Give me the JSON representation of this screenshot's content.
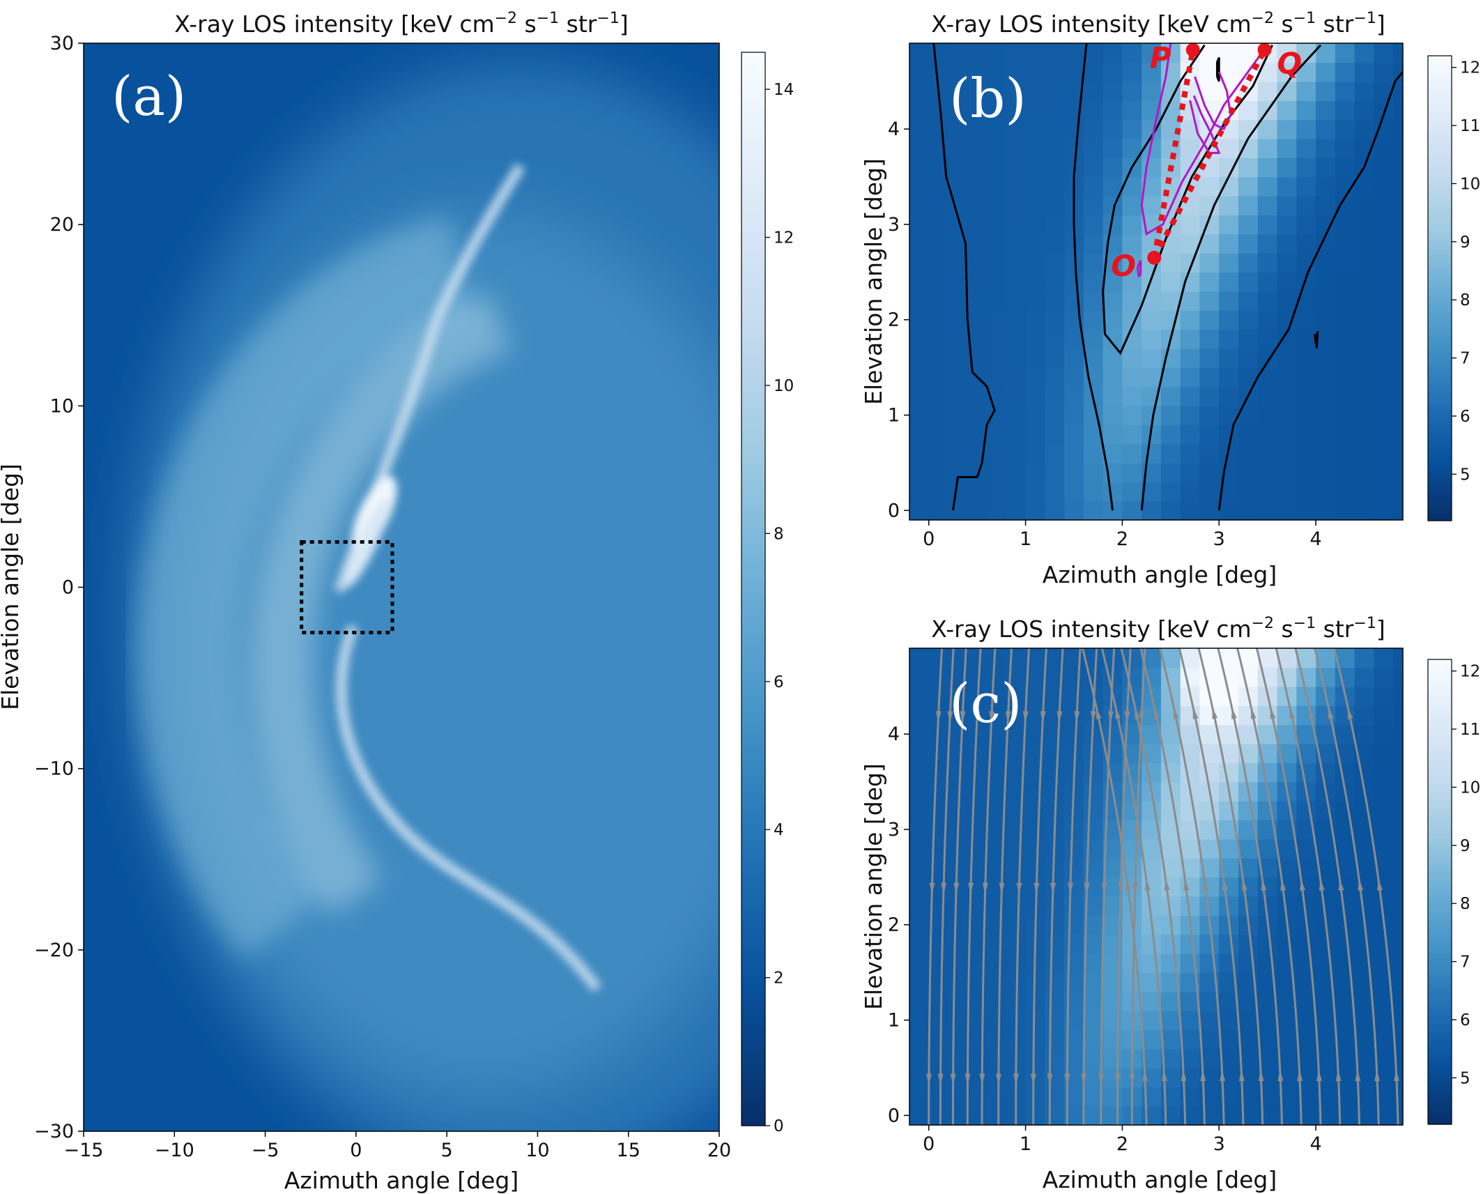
{
  "colormap": {
    "name": "Blues_r",
    "stops": [
      "#08306b",
      "#08519c",
      "#2171b5",
      "#4292c6",
      "#6baed6",
      "#9ecae1",
      "#c6dbef",
      "#deebf7",
      "#f7fbff"
    ]
  },
  "chart_data": [
    {
      "panel": "(a)",
      "type": "heatmap",
      "title": "X-ray LOS intensity [keV cm$^{-2}$ s$^{-1}$ str$^{-1}$]",
      "title_parts": {
        "lead": "X-ray LOS intensity [keV cm",
        "e1": "−2",
        "mid1": " s",
        "e2": "−1",
        "mid2": " str",
        "e3": "−1",
        "tail": "]"
      },
      "xlabel": "Azimuth angle [deg]",
      "ylabel": "Elevation angle [deg]",
      "xlim": [
        -15,
        20
      ],
      "ylim": [
        -30,
        30
      ],
      "xticks": [
        -15,
        -10,
        -5,
        0,
        5,
        10,
        15,
        20
      ],
      "xtick_labels": [
        "−15",
        "−10",
        "−5",
        "0",
        "5",
        "10",
        "15",
        "20"
      ],
      "yticks": [
        -30,
        -20,
        -10,
        0,
        10,
        20,
        30
      ],
      "ytick_labels": [
        "−30",
        "−20",
        "−10",
        "0",
        "10",
        "20",
        "30"
      ],
      "colorbar": {
        "min": 0,
        "max": 14.5,
        "ticks": [
          0,
          2,
          4,
          6,
          8,
          10,
          12,
          14
        ],
        "tick_labels": [
          "0",
          "2",
          "4",
          "6",
          "8",
          "10",
          "12",
          "14"
        ]
      },
      "features": {
        "arc_center": [
          -1,
          0
        ],
        "arc_radius_deg": 18,
        "bright_filament_peak": {
          "azimuth": 1,
          "elevation": 4,
          "intensity": 14.5
        }
      },
      "zoom_box": {
        "x": [
          -3,
          2
        ],
        "y": [
          -2.5,
          2.5
        ],
        "style": "dotted",
        "color": "#000000"
      }
    },
    {
      "panel": "(b)",
      "type": "heatmap",
      "title_parts": {
        "lead": "X-ray LOS intensity [keV cm",
        "e1": "−2",
        "mid1": " s",
        "e2": "−1",
        "mid2": " str",
        "e3": "−1",
        "tail": "]"
      },
      "xlabel": "Azimuth angle [deg]",
      "ylabel": "Elevation angle [deg]",
      "xlim": [
        -0.2,
        4.9
      ],
      "ylim": [
        -0.1,
        4.9
      ],
      "xticks": [
        0,
        1,
        2,
        3,
        4
      ],
      "xtick_labels": [
        "0",
        "1",
        "2",
        "3",
        "4"
      ],
      "yticks": [
        0,
        1,
        2,
        3,
        4
      ],
      "ytick_labels": [
        "0",
        "1",
        "2",
        "3",
        "4"
      ],
      "colorbar": {
        "min": 4.2,
        "max": 12.2,
        "ticks": [
          5,
          6,
          7,
          8,
          9,
          10,
          11,
          12
        ],
        "tick_labels": [
          "5",
          "6",
          "7",
          "8",
          "9",
          "10",
          "11",
          "12"
        ]
      },
      "points": [
        {
          "label": "O",
          "azimuth": 2.33,
          "elevation": 2.65
        },
        {
          "label": "P",
          "azimuth": 2.73,
          "elevation": 4.83
        },
        {
          "label": "Q",
          "azimuth": 3.47,
          "elevation": 4.83
        }
      ],
      "dotted_lines": [
        [
          "O",
          "P"
        ],
        [
          "O",
          "Q"
        ]
      ],
      "contour_colors": {
        "outer": "#000000",
        "inner": "#b218c4"
      },
      "contours": [
        {
          "color": "outer",
          "points": [
            [
              0.25,
              0.0
            ],
            [
              0.3,
              0.35
            ],
            [
              0.5,
              0.35
            ],
            [
              0.55,
              0.5
            ],
            [
              0.6,
              0.9
            ],
            [
              0.68,
              1.05
            ],
            [
              0.6,
              1.3
            ],
            [
              0.45,
              1.45
            ],
            [
              0.4,
              2.0
            ],
            [
              0.38,
              2.8
            ],
            [
              0.18,
              3.5
            ],
            [
              0.12,
              4.2
            ],
            [
              0.05,
              4.9
            ]
          ]
        },
        {
          "color": "outer",
          "points": [
            [
              1.9,
              0.0
            ],
            [
              1.85,
              0.4
            ],
            [
              1.76,
              0.9
            ],
            [
              1.65,
              1.4
            ],
            [
              1.56,
              2.0
            ],
            [
              1.52,
              2.5
            ],
            [
              1.5,
              3.0
            ],
            [
              1.5,
              3.5
            ],
            [
              1.55,
              4.1
            ],
            [
              1.6,
              4.6
            ],
            [
              1.63,
              4.9
            ]
          ]
        },
        {
          "color": "outer",
          "points": [
            [
              2.85,
              4.88
            ],
            [
              2.6,
              4.5
            ],
            [
              2.35,
              4.0
            ],
            [
              2.1,
              3.6
            ],
            [
              1.92,
              3.2
            ],
            [
              1.85,
              2.8
            ],
            [
              1.8,
              2.3
            ],
            [
              1.82,
              1.85
            ],
            [
              1.98,
              1.65
            ],
            [
              2.2,
              2.15
            ],
            [
              2.45,
              2.85
            ],
            [
              2.72,
              3.5
            ],
            [
              3.05,
              4.05
            ],
            [
              3.35,
              4.45
            ],
            [
              3.55,
              4.88
            ]
          ]
        },
        {
          "color": "outer",
          "points": [
            [
              2.2,
              0.0
            ],
            [
              2.25,
              0.5
            ],
            [
              2.32,
              1.0
            ],
            [
              2.45,
              1.6
            ],
            [
              2.65,
              2.4
            ],
            [
              2.95,
              3.2
            ],
            [
              3.3,
              3.9
            ],
            [
              3.75,
              4.55
            ],
            [
              4.05,
              4.88
            ]
          ]
        },
        {
          "color": "outer",
          "points": [
            [
              3.0,
              0.0
            ],
            [
              3.05,
              0.4
            ],
            [
              3.15,
              0.9
            ],
            [
              3.4,
              1.4
            ],
            [
              3.72,
              1.9
            ],
            [
              3.92,
              2.5
            ],
            [
              4.25,
              3.2
            ],
            [
              4.5,
              3.6
            ],
            [
              4.65,
              4.0
            ],
            [
              4.82,
              4.5
            ],
            [
              4.9,
              4.6
            ]
          ]
        },
        {
          "color": "outer",
          "points": [
            [
              4.0,
              1.75
            ],
            [
              4.02,
              1.88
            ],
            [
              4.01,
              1.7
            ],
            [
              3.99,
              1.85
            ],
            [
              4.0,
              1.75
            ]
          ]
        },
        {
          "color": "outer",
          "points": [
            [
              2.98,
              4.55
            ],
            [
              2.98,
              4.7
            ],
            [
              3.0,
              4.75
            ],
            [
              3.0,
              4.5
            ],
            [
              2.98,
              4.55
            ]
          ]
        },
        {
          "color": "inner",
          "points": [
            [
              2.5,
              4.9
            ],
            [
              2.45,
              4.55
            ],
            [
              2.35,
              4.1
            ],
            [
              2.25,
              3.6
            ],
            [
              2.2,
              3.2
            ],
            [
              2.25,
              2.9
            ],
            [
              2.42,
              3.0
            ],
            [
              2.62,
              3.45
            ],
            [
              2.85,
              3.85
            ],
            [
              3.05,
              4.25
            ],
            [
              3.3,
              4.6
            ],
            [
              3.5,
              4.88
            ]
          ]
        },
        {
          "color": "inner",
          "points": [
            [
              2.75,
              4.55
            ],
            [
              2.85,
              4.25
            ],
            [
              2.95,
              4.05
            ],
            [
              3.05,
              4.0
            ],
            [
              3.12,
              4.15
            ],
            [
              3.08,
              4.4
            ],
            [
              3.0,
              4.6
            ]
          ]
        },
        {
          "color": "inner",
          "points": [
            [
              2.7,
              4.3
            ],
            [
              2.78,
              3.95
            ],
            [
              2.9,
              3.75
            ],
            [
              3.0,
              3.75
            ],
            [
              2.92,
              3.95
            ],
            [
              2.82,
              4.15
            ],
            [
              2.74,
              4.35
            ]
          ]
        },
        {
          "color": "inner",
          "points": [
            [
              2.17,
              2.45
            ],
            [
              2.16,
              2.55
            ],
            [
              2.19,
              2.62
            ],
            [
              2.19,
              2.48
            ],
            [
              2.17,
              2.45
            ]
          ]
        }
      ]
    },
    {
      "panel": "(c)",
      "type": "heatmap",
      "title_parts": {
        "lead": "X-ray LOS intensity [keV cm",
        "e1": "−2",
        "mid1": " s",
        "e2": "−1",
        "mid2": " str",
        "e3": "−1",
        "tail": "]"
      },
      "xlabel": "Azimuth angle [deg]",
      "ylabel": "Elevation angle [deg]",
      "xlim": [
        -0.2,
        4.9
      ],
      "ylim": [
        -0.1,
        4.9
      ],
      "xticks": [
        0,
        1,
        2,
        3,
        4
      ],
      "xtick_labels": [
        "0",
        "1",
        "2",
        "3",
        "4"
      ],
      "yticks": [
        0,
        1,
        2,
        3,
        4
      ],
      "ytick_labels": [
        "0",
        "1",
        "2",
        "3",
        "4"
      ],
      "colorbar": {
        "min": 4.2,
        "max": 12.2,
        "ticks": [
          5,
          6,
          7,
          8,
          9,
          10,
          11,
          12
        ],
        "tick_labels": [
          "5",
          "6",
          "7",
          "8",
          "9",
          "10",
          "11",
          "12"
        ]
      },
      "streamline_color": "#8c8c8c",
      "streamlines": {
        "left_x": [
          0.0,
          0.12,
          0.25,
          0.4,
          0.55,
          0.72,
          0.9,
          1.08,
          1.25,
          1.43,
          1.6,
          1.78,
          1.95,
          2.1
        ],
        "right_x": [
          2.25,
          2.45,
          2.65,
          2.85,
          3.05,
          3.25,
          3.45,
          3.65,
          3.85,
          4.05,
          4.25,
          4.45,
          4.65,
          4.85
        ],
        "left_bend": 0.9,
        "right_bend": 2.2,
        "left_direction": "down",
        "right_direction": "up"
      }
    }
  ],
  "panel_letters": [
    "(a)",
    "(b)",
    "(c)"
  ]
}
